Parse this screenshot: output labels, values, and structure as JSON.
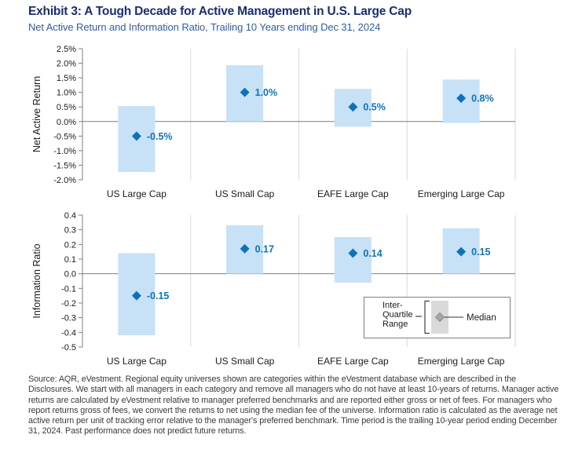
{
  "header": {
    "title": "Exhibit 3: A Tough Decade for Active Management in U.S. Large Cap",
    "subtitle": "Net Active Return and Information Ratio, Trailing 10 Years ending Dec 31, 2024"
  },
  "colors": {
    "title_text": "#1B2D6E",
    "subtitle_text": "#2E5CA6",
    "iqr_bar": "#C7E1F6",
    "median_diamond": "#0F72B8",
    "value_label": "#0F72B8",
    "axis_line": "#7F7F7F",
    "gridline": "#D9D9D9",
    "chart_text": "#1A1A1A",
    "legend_border": "#7F7F7F",
    "legend_swatch": "#D9D9D9",
    "legend_diamond": "#A6A6A6",
    "footer_text": "#3A3A3A"
  },
  "chart_data": [
    {
      "type": "boxplot",
      "panel": "net-active-return",
      "ylabel": "Net Active Return",
      "ymin": -2.0,
      "ymax": 2.5,
      "ystep": 0.5,
      "tick_format": "percent1",
      "grid": "vertical category separators and zero line only",
      "categories": [
        "US Large Cap",
        "US Small Cap",
        "EAFE Large Cap",
        "Emerging Large Cap"
      ],
      "series": [
        {
          "category": "US Large Cap",
          "iqr_low": -1.73,
          "iqr_high": 0.53,
          "median": -0.5,
          "median_label": "-0.5%"
        },
        {
          "category": "US Small Cap",
          "iqr_low": 0.0,
          "iqr_high": 1.93,
          "median": 1.0,
          "median_label": "1.0%"
        },
        {
          "category": "EAFE Large Cap",
          "iqr_low": -0.18,
          "iqr_high": 1.12,
          "median": 0.5,
          "median_label": "0.5%"
        },
        {
          "category": "Emerging Large Cap",
          "iqr_low": -0.05,
          "iqr_high": 1.44,
          "median": 0.8,
          "median_label": "0.8%"
        }
      ]
    },
    {
      "type": "boxplot",
      "panel": "information-ratio",
      "ylabel": "Information Ratio",
      "ymin": -0.5,
      "ymax": 0.4,
      "ystep": 0.1,
      "tick_format": "fixed1",
      "grid": "vertical category separators and zero line only",
      "categories": [
        "US Large Cap",
        "US Small Cap",
        "EAFE Large Cap",
        "Emerging Large Cap"
      ],
      "series": [
        {
          "category": "US Large Cap",
          "iqr_low": -0.42,
          "iqr_high": 0.14,
          "median": -0.15,
          "median_label": "-0.15"
        },
        {
          "category": "US Small Cap",
          "iqr_low": 0.0,
          "iqr_high": 0.33,
          "median": 0.17,
          "median_label": "0.17"
        },
        {
          "category": "EAFE Large Cap",
          "iqr_low": -0.06,
          "iqr_high": 0.25,
          "median": 0.14,
          "median_label": "0.14"
        },
        {
          "category": "Emerging Large Cap",
          "iqr_low": 0.0,
          "iqr_high": 0.31,
          "median": 0.15,
          "median_label": "0.15"
        }
      ],
      "legend": {
        "position": "inside-bottom-center-right",
        "iqr_label_lines": [
          "Inter-",
          "Quartile",
          "Range"
        ],
        "median_label": "Median"
      }
    }
  ],
  "footer": {
    "source_text": "Source: AQR, eVestment. Regional equity universes shown are categories within the eVestment database which are described in the Disclosures. We start with all managers in each category and remove all managers who do not have at least 10-years of returns. Manager active returns are calculated by eVestment relative to manager preferred benchmarks and are reported either gross or net of fees. For managers who report returns gross of fees, we convert the returns to net using the median fee of the universe. Information ratio is calculated as the average net active return per unit of tracking error relative to the manager's preferred benchmark. Time period is the trailing 10-year period ending December 31, 2024. Past performance does not predict future returns."
  }
}
